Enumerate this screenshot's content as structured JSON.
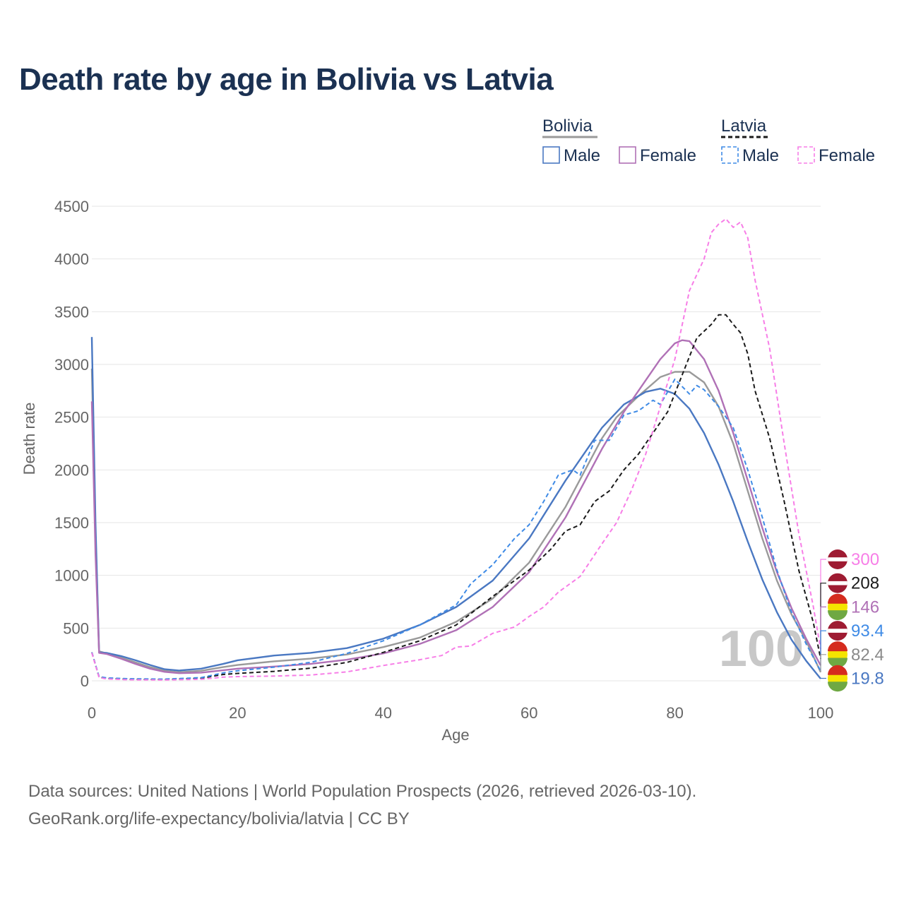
{
  "title": "Death rate by age in Bolivia vs Latvia",
  "legend": {
    "groups": [
      {
        "name": "Bolivia",
        "color": "#9a9a9a",
        "dash": "solid",
        "items": [
          {
            "label": "Male",
            "color": "#4a78c2",
            "dash": "solid"
          },
          {
            "label": "Female",
            "color": "#b071b6",
            "dash": "solid"
          }
        ]
      },
      {
        "name": "Latvia",
        "color": "#1a1a1a",
        "dash": "dashed",
        "items": [
          {
            "label": "Male",
            "color": "#3f8be6",
            "dash": "dashed"
          },
          {
            "label": "Female",
            "color": "#f77ee7",
            "dash": "dashed"
          }
        ]
      }
    ]
  },
  "chart_data": {
    "type": "line",
    "title": "Death rate by age in Bolivia vs Latvia",
    "xlabel": "Age",
    "ylabel": "Death rate",
    "xlim": [
      0,
      100
    ],
    "ylim": [
      0,
      4500
    ],
    "xticks": [
      0,
      20,
      40,
      60,
      80,
      100
    ],
    "yticks": [
      0,
      500,
      1000,
      1500,
      2000,
      2500,
      3000,
      3500,
      4000,
      4500
    ],
    "grid": true,
    "watermark": "100",
    "series": [
      {
        "id": "bolivia-total",
        "name": "Bolivia",
        "color": "#9a9a9a",
        "dash": "solid",
        "end_label": "82.4",
        "flag": "bolivia",
        "points": [
          [
            0,
            2960
          ],
          [
            0.5,
            1400
          ],
          [
            1,
            280
          ],
          [
            2,
            260
          ],
          [
            4,
            220
          ],
          [
            6,
            175
          ],
          [
            8,
            130
          ],
          [
            10,
            95
          ],
          [
            12,
            82
          ],
          [
            15,
            95
          ],
          [
            18,
            130
          ],
          [
            20,
            150
          ],
          [
            25,
            185
          ],
          [
            30,
            210
          ],
          [
            35,
            250
          ],
          [
            40,
            320
          ],
          [
            45,
            410
          ],
          [
            50,
            560
          ],
          [
            55,
            780
          ],
          [
            60,
            1120
          ],
          [
            65,
            1650
          ],
          [
            70,
            2300
          ],
          [
            72,
            2500
          ],
          [
            75,
            2700
          ],
          [
            78,
            2880
          ],
          [
            80,
            2930
          ],
          [
            82,
            2930
          ],
          [
            84,
            2830
          ],
          [
            86,
            2600
          ],
          [
            88,
            2250
          ],
          [
            90,
            1800
          ],
          [
            92,
            1350
          ],
          [
            94,
            950
          ],
          [
            96,
            630
          ],
          [
            98,
            380
          ],
          [
            100,
            82.4
          ]
        ]
      },
      {
        "id": "bolivia-male",
        "name": "Bolivia Male",
        "color": "#4a78c2",
        "dash": "solid",
        "end_label": "19.8",
        "flag": "bolivia",
        "points": [
          [
            0,
            3260
          ],
          [
            0.5,
            1500
          ],
          [
            1,
            270
          ],
          [
            2,
            265
          ],
          [
            4,
            235
          ],
          [
            6,
            195
          ],
          [
            8,
            150
          ],
          [
            10,
            110
          ],
          [
            12,
            98
          ],
          [
            15,
            115
          ],
          [
            18,
            160
          ],
          [
            20,
            195
          ],
          [
            25,
            240
          ],
          [
            30,
            265
          ],
          [
            35,
            310
          ],
          [
            40,
            400
          ],
          [
            45,
            530
          ],
          [
            50,
            700
          ],
          [
            55,
            950
          ],
          [
            60,
            1350
          ],
          [
            65,
            1900
          ],
          [
            70,
            2400
          ],
          [
            73,
            2620
          ],
          [
            76,
            2740
          ],
          [
            78,
            2770
          ],
          [
            80,
            2720
          ],
          [
            82,
            2580
          ],
          [
            84,
            2350
          ],
          [
            86,
            2050
          ],
          [
            88,
            1700
          ],
          [
            90,
            1320
          ],
          [
            92,
            960
          ],
          [
            94,
            650
          ],
          [
            96,
            390
          ],
          [
            98,
            190
          ],
          [
            100,
            19.8
          ]
        ]
      },
      {
        "id": "bolivia-female",
        "name": "Bolivia Female",
        "color": "#b071b6",
        "dash": "solid",
        "end_label": "146",
        "flag": "bolivia",
        "points": [
          [
            0,
            2650
          ],
          [
            0.5,
            1200
          ],
          [
            1,
            265
          ],
          [
            2,
            255
          ],
          [
            4,
            210
          ],
          [
            6,
            160
          ],
          [
            8,
            115
          ],
          [
            10,
            85
          ],
          [
            12,
            72
          ],
          [
            15,
            78
          ],
          [
            18,
            100
          ],
          [
            20,
            115
          ],
          [
            25,
            135
          ],
          [
            30,
            160
          ],
          [
            35,
            200
          ],
          [
            40,
            260
          ],
          [
            45,
            350
          ],
          [
            50,
            480
          ],
          [
            55,
            700
          ],
          [
            60,
            1030
          ],
          [
            65,
            1550
          ],
          [
            70,
            2200
          ],
          [
            73,
            2550
          ],
          [
            76,
            2850
          ],
          [
            78,
            3050
          ],
          [
            80,
            3200
          ],
          [
            81,
            3230
          ],
          [
            82,
            3220
          ],
          [
            84,
            3050
          ],
          [
            86,
            2750
          ],
          [
            88,
            2350
          ],
          [
            90,
            1900
          ],
          [
            92,
            1450
          ],
          [
            94,
            1030
          ],
          [
            96,
            690
          ],
          [
            98,
            400
          ],
          [
            100,
            146
          ]
        ]
      },
      {
        "id": "latvia-total",
        "name": "Latvia",
        "color": "#1a1a1a",
        "dash": "dashed",
        "end_label": "208",
        "flag": "latvia",
        "points": [
          [
            0,
            270
          ],
          [
            1,
            35
          ],
          [
            2,
            22
          ],
          [
            5,
            15
          ],
          [
            10,
            12
          ],
          [
            15,
            25
          ],
          [
            18,
            60
          ],
          [
            20,
            70
          ],
          [
            25,
            90
          ],
          [
            30,
            120
          ],
          [
            35,
            175
          ],
          [
            40,
            270
          ],
          [
            45,
            380
          ],
          [
            50,
            530
          ],
          [
            55,
            800
          ],
          [
            60,
            1050
          ],
          [
            63,
            1250
          ],
          [
            65,
            1420
          ],
          [
            67,
            1480
          ],
          [
            69,
            1700
          ],
          [
            71,
            1800
          ],
          [
            73,
            2000
          ],
          [
            75,
            2150
          ],
          [
            77,
            2350
          ],
          [
            79,
            2550
          ],
          [
            81,
            2900
          ],
          [
            83,
            3250
          ],
          [
            85,
            3380
          ],
          [
            86,
            3470
          ],
          [
            87,
            3470
          ],
          [
            88,
            3380
          ],
          [
            89,
            3300
          ],
          [
            90,
            3100
          ],
          [
            91,
            2750
          ],
          [
            93,
            2300
          ],
          [
            95,
            1700
          ],
          [
            97,
            1050
          ],
          [
            99,
            550
          ],
          [
            100,
            208
          ]
        ]
      },
      {
        "id": "latvia-male",
        "name": "Latvia Male",
        "color": "#3f8be6",
        "dash": "dashed",
        "end_label": "93.4",
        "flag": "latvia",
        "points": [
          [
            0,
            270
          ],
          [
            1,
            40
          ],
          [
            2,
            28
          ],
          [
            5,
            20
          ],
          [
            10,
            16
          ],
          [
            15,
            30
          ],
          [
            18,
            75
          ],
          [
            20,
            95
          ],
          [
            25,
            130
          ],
          [
            30,
            175
          ],
          [
            35,
            260
          ],
          [
            40,
            380
          ],
          [
            45,
            530
          ],
          [
            50,
            720
          ],
          [
            52,
            920
          ],
          [
            55,
            1100
          ],
          [
            58,
            1350
          ],
          [
            60,
            1480
          ],
          [
            62,
            1700
          ],
          [
            64,
            1950
          ],
          [
            66,
            2000
          ],
          [
            67,
            1950
          ],
          [
            69,
            2280
          ],
          [
            71,
            2280
          ],
          [
            73,
            2520
          ],
          [
            75,
            2560
          ],
          [
            77,
            2660
          ],
          [
            78,
            2620
          ],
          [
            80,
            2860
          ],
          [
            82,
            2720
          ],
          [
            83,
            2800
          ],
          [
            84,
            2760
          ],
          [
            86,
            2600
          ],
          [
            88,
            2400
          ],
          [
            90,
            2000
          ],
          [
            92,
            1550
          ],
          [
            94,
            1050
          ],
          [
            96,
            650
          ],
          [
            98,
            350
          ],
          [
            100,
            93.4
          ]
        ]
      },
      {
        "id": "latvia-female",
        "name": "Latvia Female",
        "color": "#f77ee7",
        "dash": "dashed",
        "end_label": "300",
        "flag": "latvia",
        "points": [
          [
            0,
            265
          ],
          [
            1,
            32
          ],
          [
            2,
            18
          ],
          [
            5,
            10
          ],
          [
            10,
            8
          ],
          [
            15,
            15
          ],
          [
            18,
            35
          ],
          [
            20,
            40
          ],
          [
            25,
            45
          ],
          [
            30,
            55
          ],
          [
            35,
            85
          ],
          [
            40,
            145
          ],
          [
            45,
            200
          ],
          [
            48,
            240
          ],
          [
            50,
            320
          ],
          [
            52,
            330
          ],
          [
            55,
            450
          ],
          [
            58,
            510
          ],
          [
            60,
            610
          ],
          [
            62,
            700
          ],
          [
            64,
            840
          ],
          [
            67,
            990
          ],
          [
            70,
            1300
          ],
          [
            72,
            1500
          ],
          [
            74,
            1800
          ],
          [
            76,
            2150
          ],
          [
            78,
            2600
          ],
          [
            80,
            3050
          ],
          [
            82,
            3700
          ],
          [
            84,
            4000
          ],
          [
            85,
            4250
          ],
          [
            86,
            4330
          ],
          [
            87,
            4380
          ],
          [
            88,
            4300
          ],
          [
            89,
            4350
          ],
          [
            90,
            4200
          ],
          [
            91,
            3800
          ],
          [
            93,
            3150
          ],
          [
            95,
            2250
          ],
          [
            97,
            1400
          ],
          [
            99,
            700
          ],
          [
            100,
            300
          ]
        ]
      }
    ]
  },
  "footer": {
    "line1": "Data sources: United Nations | World Population Prospects (2026, retrieved 2026-03-10).",
    "line2": "GeoRank.org/life-expectancy/bolivia/latvia | CC BY"
  }
}
